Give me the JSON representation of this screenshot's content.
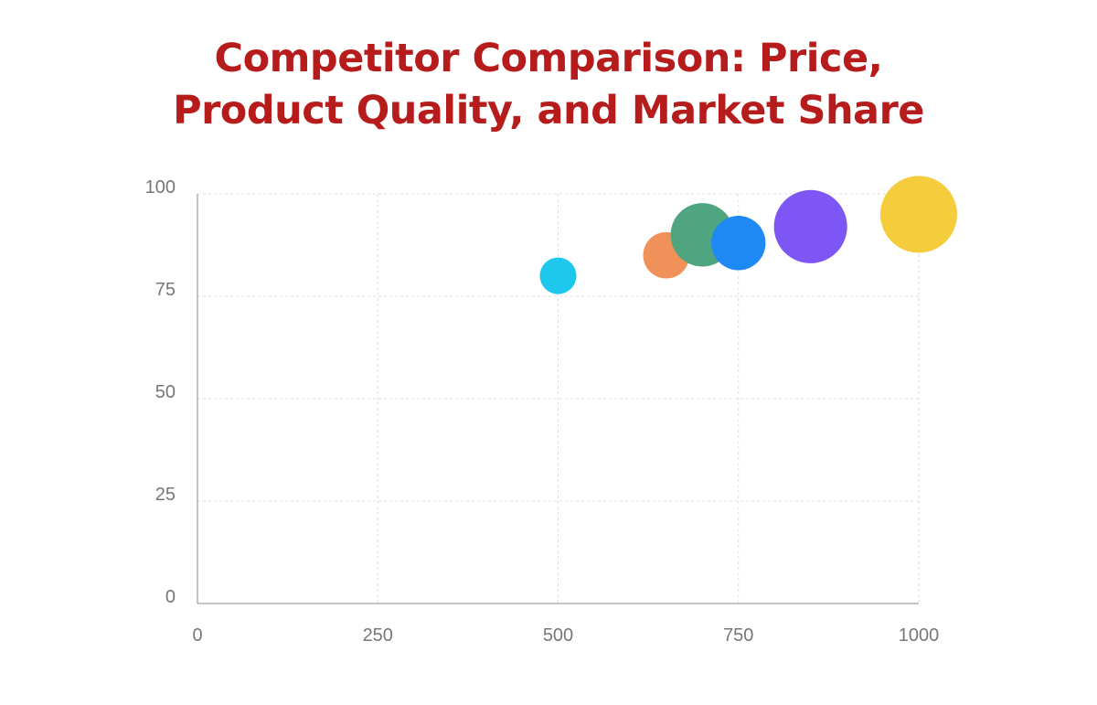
{
  "chart_data": {
    "type": "scatter",
    "title_lines": [
      "Competitor Comparison: Price,",
      "Product Quality, and Market Share"
    ],
    "xlabel": "",
    "ylabel": "",
    "xlim": [
      0,
      1000
    ],
    "ylim": [
      0,
      100
    ],
    "x_ticks": [
      0,
      250,
      500,
      750,
      1000
    ],
    "y_ticks": [
      0,
      25,
      50,
      75,
      100
    ],
    "grid": true,
    "legend": "none",
    "points": [
      {
        "x": 500,
        "y": 80,
        "size": 5,
        "color": "#1ec8ec"
      },
      {
        "x": 650,
        "y": 85,
        "size": 8,
        "color": "#f0915a"
      },
      {
        "x": 700,
        "y": 90,
        "size": 15,
        "color": "#4ea57f"
      },
      {
        "x": 750,
        "y": 88,
        "size": 11,
        "color": "#1e88f5"
      },
      {
        "x": 850,
        "y": 92,
        "size": 20,
        "color": "#7e56f5"
      },
      {
        "x": 1000,
        "y": 95,
        "size": 22,
        "color": "#f4cc3c"
      }
    ]
  },
  "colors": {
    "title": "#b71c1c",
    "grid": "#dddddd",
    "axis": "#888888",
    "tick_text": "#777777"
  }
}
